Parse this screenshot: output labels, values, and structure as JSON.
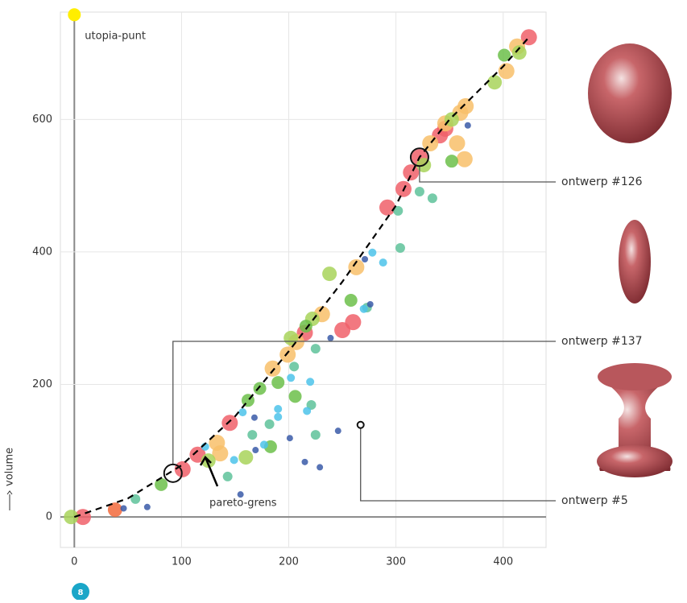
{
  "chart_data": {
    "type": "scatter",
    "xlim": [
      -13,
      440
    ],
    "ylim": [
      -46,
      762
    ],
    "xticks": [
      0,
      100,
      200,
      300,
      400
    ],
    "yticks": [
      0,
      200,
      400,
      600
    ],
    "grid": true,
    "y_label": "volume",
    "badge": "8",
    "series": [
      {
        "color": "#f0606a",
        "x": [
          8,
          101,
          115,
          145,
          215,
          250,
          260,
          292,
          307,
          314,
          341,
          346,
          424,
          322
        ],
        "y": [
          0,
          72,
          94,
          142,
          278,
          282,
          294,
          467,
          495,
          520,
          576,
          586,
          724,
          543
        ]
      },
      {
        "color": "#f26a3c",
        "x": [
          38
        ],
        "y": [
          11
        ]
      },
      {
        "color": "#f8c06a",
        "x": [
          133,
          136,
          185,
          199,
          207,
          231,
          263,
          332,
          346,
          357,
          364,
          360,
          365,
          403,
          413
        ],
        "y": [
          112,
          96,
          224,
          245,
          264,
          306,
          377,
          564,
          594,
          564,
          540,
          610,
          620,
          673,
          710
        ]
      },
      {
        "color": "#a8d45a",
        "x": [
          -3,
          125,
          160,
          202,
          222,
          238,
          352,
          392,
          415,
          326
        ],
        "y": [
          0,
          85,
          90,
          270,
          299,
          367,
          600,
          656,
          701,
          531
        ]
      },
      {
        "color": "#6cbf4a",
        "x": [
          81,
          162,
          173,
          190,
          206,
          216,
          258,
          352,
          401,
          183
        ],
        "y": [
          49,
          176,
          194,
          203,
          182,
          288,
          327,
          537,
          697,
          106
        ]
      },
      {
        "color": "#5ec29a",
        "x": [
          57,
          143,
          166,
          182,
          205,
          221,
          225,
          225,
          273,
          304,
          322,
          334,
          302
        ],
        "y": [
          27,
          61,
          124,
          140,
          227,
          169,
          124,
          254,
          316,
          406,
          491,
          481,
          462
        ]
      },
      {
        "color": "#4cc3ea",
        "x": [
          122,
          149,
          157,
          177,
          190,
          190,
          202,
          217,
          278,
          288,
          270,
          220
        ],
        "y": [
          106,
          86,
          158,
          109,
          163,
          151,
          210,
          160,
          399,
          384,
          314,
          204
        ]
      },
      {
        "color": "#3a5aa8",
        "x": [
          46,
          68,
          155,
          168,
          169,
          201,
          215,
          229,
          246,
          239,
          271,
          276,
          367
        ],
        "y": [
          13,
          15,
          34,
          150,
          101,
          119,
          83,
          75,
          130,
          270,
          389,
          321,
          591
        ]
      }
    ],
    "utopia": {
      "color": "#ffee00",
      "x": 0,
      "y": 758,
      "label": "utopia-punt"
    },
    "pareto": {
      "x": [
        0,
        50,
        100,
        150,
        200,
        250,
        300,
        322,
        350,
        400,
        424
      ],
      "y": [
        0,
        28,
        78,
        152,
        250,
        355,
        470,
        543,
        600,
        680,
        724
      ]
    },
    "annotations": [
      {
        "text": "ontwerp #126",
        "x": 322,
        "y": 543
      },
      {
        "text": "ontwerp #137",
        "x": 92,
        "y": 66
      },
      {
        "text": "ontwerp #5",
        "x": 267,
        "y": 139
      }
    ],
    "pareto_label": "pareto-grens"
  }
}
